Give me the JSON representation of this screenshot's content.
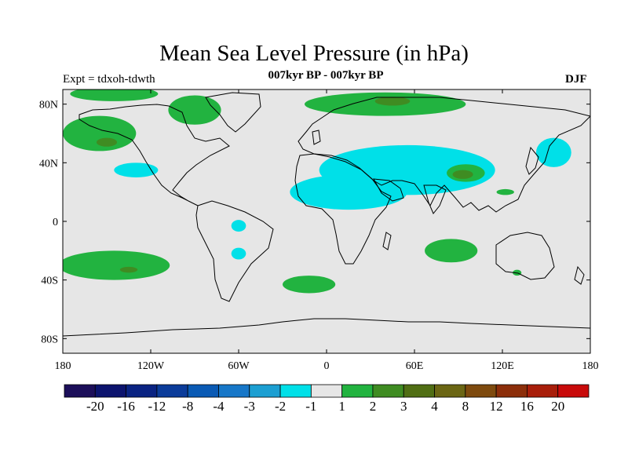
{
  "title": "Mean Sea Level Pressure (in hPa)",
  "subtitle": "007kyr BP - 007kyr BP",
  "left_label": "Expt = tdxoh-tdwth",
  "right_label": "DJF",
  "colors": {
    "background_land": "#e6e6e6",
    "coastline": "#000000",
    "neg_1": "#00e0e8",
    "pos_1": "#22b340",
    "pos_2": "#3f8c22",
    "pos_3": "#6b6614"
  },
  "chart_data": {
    "type": "map",
    "projection": "cylindrical-equidistant",
    "lon_range": [
      -180,
      180
    ],
    "lat_range": [
      -90,
      90
    ],
    "x_ticks": [
      {
        "lon": -180,
        "label": "180"
      },
      {
        "lon": -120,
        "label": "120W"
      },
      {
        "lon": -60,
        "label": "60W"
      },
      {
        "lon": 0,
        "label": "0"
      },
      {
        "lon": 60,
        "label": "60E"
      },
      {
        "lon": 120,
        "label": "120E"
      },
      {
        "lon": 180,
        "label": "180"
      }
    ],
    "y_ticks": [
      {
        "lat": 80,
        "label": "80N"
      },
      {
        "lat": 40,
        "label": "40N"
      },
      {
        "lat": 0,
        "label": "0"
      },
      {
        "lat": -40,
        "label": "40S"
      },
      {
        "lat": -80,
        "label": "80S"
      }
    ],
    "colorbar": {
      "colors": [
        "#1c0f5a",
        "#0c146e",
        "#0a2382",
        "#0b3c9a",
        "#0a5ab4",
        "#1777c8",
        "#1c9fd2",
        "#00e0e8",
        "#e6e6e6",
        "#22b340",
        "#3f8c22",
        "#506e14",
        "#6b6614",
        "#7e4a0e",
        "#8c2e0a",
        "#a81e0a",
        "#c80a0a"
      ],
      "labels": [
        "-20",
        "-16",
        "-12",
        "-8",
        "-4",
        "-3",
        "-2",
        "-1",
        "1",
        "2",
        "3",
        "4",
        "8",
        "12",
        "16",
        "20"
      ]
    },
    "anomaly_regions": [
      {
        "level": 1,
        "center": [
          -155,
          60
        ],
        "radius": [
          25,
          12
        ]
      },
      {
        "level": 2,
        "center": [
          -150,
          54
        ],
        "radius": [
          7,
          3
        ]
      },
      {
        "level": 1,
        "center": [
          -145,
          87
        ],
        "radius": [
          30,
          5
        ]
      },
      {
        "level": 1,
        "center": [
          -90,
          76
        ],
        "radius": [
          18,
          10
        ]
      },
      {
        "level": 1,
        "center": [
          40,
          80
        ],
        "radius": [
          55,
          8
        ]
      },
      {
        "level": 2,
        "center": [
          45,
          82
        ],
        "radius": [
          12,
          3
        ]
      },
      {
        "level": -1,
        "center": [
          55,
          35
        ],
        "radius": [
          60,
          17
        ]
      },
      {
        "level": -1,
        "center": [
          15,
          20
        ],
        "radius": [
          40,
          12
        ]
      },
      {
        "level": -1,
        "center": [
          -130,
          35
        ],
        "radius": [
          15,
          5
        ]
      },
      {
        "level": 1,
        "center": [
          95,
          33
        ],
        "radius": [
          13,
          6
        ]
      },
      {
        "level": 2,
        "center": [
          93,
          32
        ],
        "radius": [
          7,
          3
        ]
      },
      {
        "level": -1,
        "center": [
          155,
          47
        ],
        "radius": [
          12,
          10
        ]
      },
      {
        "level": 1,
        "center": [
          -145,
          -30
        ],
        "radius": [
          38,
          10
        ]
      },
      {
        "level": 2,
        "center": [
          -135,
          -33
        ],
        "radius": [
          6,
          2
        ]
      },
      {
        "level": -1,
        "center": [
          -60,
          -3
        ],
        "radius": [
          5,
          4
        ]
      },
      {
        "level": -1,
        "center": [
          -60,
          -22
        ],
        "radius": [
          5,
          4
        ]
      },
      {
        "level": 1,
        "center": [
          -12,
          -43
        ],
        "radius": [
          18,
          6
        ]
      },
      {
        "level": 1,
        "center": [
          85,
          -20
        ],
        "radius": [
          18,
          8
        ]
      },
      {
        "level": 1,
        "center": [
          130,
          -35
        ],
        "radius": [
          3,
          2
        ]
      },
      {
        "level": 1,
        "center": [
          122,
          20
        ],
        "radius": [
          6,
          2
        ]
      }
    ]
  }
}
